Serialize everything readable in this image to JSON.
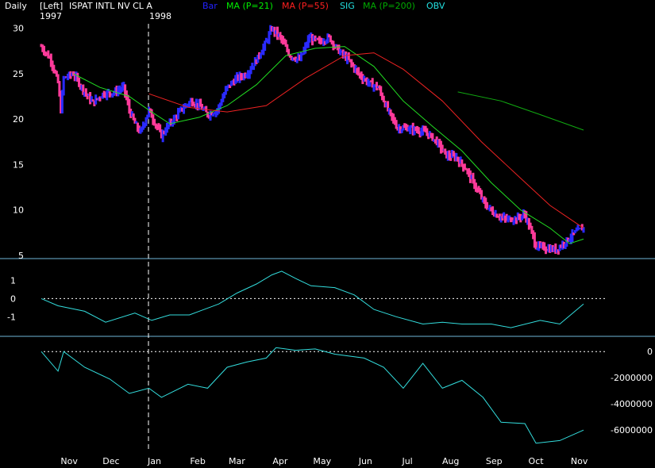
{
  "header": {
    "period": "Daily",
    "axis_side": "[Left]",
    "symbol_title": "ISPAT INTL NV CL A",
    "start_year": "1997",
    "year_marker": "1998",
    "legend": [
      {
        "label": "Bar",
        "color": "#2222ff"
      },
      {
        "label": "MA (P=21)",
        "color": "#00ee00"
      },
      {
        "label": "MA (P=55)",
        "color": "#ff2020"
      },
      {
        "label": "SIG",
        "color": "#22e0e0"
      },
      {
        "label": "MA (P=200)",
        "color": "#00aa00"
      },
      {
        "label": "OBV",
        "color": "#22e0e0"
      }
    ]
  },
  "colors": {
    "up_bar": "#2a2aff",
    "down_bar": "#ff3a9a",
    "ma21": "#22dd22",
    "ma55": "#ee2222",
    "ma200": "#11aa11",
    "sig": "#33dddd",
    "obv": "#33dddd",
    "separator": "#6fb6d8",
    "axis_text": "#ffffff"
  },
  "chart_data": [
    {
      "type": "bar",
      "title": "ISPAT INTL NV CL A",
      "x_axis": {
        "labels": [
          "Nov",
          "Dec",
          "Jan",
          "Feb",
          "Mar",
          "Apr",
          "May",
          "Jun",
          "Jul",
          "Aug",
          "Sep",
          "Oct",
          "Nov"
        ],
        "start": "1997-10-20",
        "end": "1998-11-12"
      },
      "y_axis": {
        "ticks": [
          "30",
          "25",
          "20",
          "15",
          "10",
          "5"
        ],
        "ylim": [
          5,
          30.5
        ]
      },
      "price_points": [
        [
          "1997-10-20",
          28.0
        ],
        [
          "1997-10-27",
          26.5
        ],
        [
          "1997-11-01",
          24.0
        ],
        [
          "1997-11-03",
          21.0
        ],
        [
          "1997-11-05",
          24.5
        ],
        [
          "1997-11-12",
          25.0
        ],
        [
          "1997-11-20",
          23.0
        ],
        [
          "1997-11-26",
          21.8
        ],
        [
          "1997-12-03",
          22.8
        ],
        [
          "1997-12-12",
          23.0
        ],
        [
          "1997-12-18",
          23.5
        ],
        [
          "1997-12-22",
          21.0
        ],
        [
          "1997-12-26",
          19.5
        ],
        [
          "1997-12-30",
          18.5
        ],
        [
          "1998-01-05",
          21.0
        ],
        [
          "1998-01-08",
          20.0
        ],
        [
          "1998-01-14",
          18.2
        ],
        [
          "1998-01-20",
          19.5
        ],
        [
          "1998-01-28",
          21.0
        ],
        [
          "1998-02-04",
          22.0
        ],
        [
          "1998-02-10",
          21.5
        ],
        [
          "1998-02-16",
          20.5
        ],
        [
          "1998-02-23",
          21.0
        ],
        [
          "1998-03-02",
          23.5
        ],
        [
          "1998-03-09",
          24.5
        ],
        [
          "1998-03-16",
          25.0
        ],
        [
          "1998-03-23",
          26.5
        ],
        [
          "1998-03-30",
          28.5
        ],
        [
          "1998-04-03",
          30.0
        ],
        [
          "1998-04-09",
          29.0
        ],
        [
          "1998-04-16",
          27.0
        ],
        [
          "1998-04-23",
          26.5
        ],
        [
          "1998-04-30",
          29.0
        ],
        [
          "1998-05-07",
          28.5
        ],
        [
          "1998-05-14",
          29.0
        ],
        [
          "1998-05-21",
          27.5
        ],
        [
          "1998-05-28",
          26.5
        ],
        [
          "1998-06-04",
          25.0
        ],
        [
          "1998-06-11",
          24.0
        ],
        [
          "1998-06-18",
          23.5
        ],
        [
          "1998-06-25",
          21.0
        ],
        [
          "1998-07-02",
          19.0
        ],
        [
          "1998-07-09",
          19.0
        ],
        [
          "1998-07-16",
          18.8
        ],
        [
          "1998-07-23",
          18.5
        ],
        [
          "1998-07-30",
          17.5
        ],
        [
          "1998-08-06",
          16.0
        ],
        [
          "1998-08-13",
          15.8
        ],
        [
          "1998-08-20",
          14.5
        ],
        [
          "1998-08-27",
          12.5
        ],
        [
          "1998-09-03",
          10.5
        ],
        [
          "1998-09-10",
          9.5
        ],
        [
          "1998-09-17",
          9.0
        ],
        [
          "1998-09-24",
          9.0
        ],
        [
          "1998-10-01",
          9.5
        ],
        [
          "1998-10-06",
          7.5
        ],
        [
          "1998-10-09",
          6.0
        ],
        [
          "1998-10-16",
          5.8
        ],
        [
          "1998-10-23",
          5.6
        ],
        [
          "1998-10-30",
          6.5
        ],
        [
          "1998-11-06",
          7.5
        ],
        [
          "1998-11-12",
          8.0
        ]
      ],
      "series": [
        {
          "name": "MA (P=21)",
          "points": [
            [
              "1997-11-12",
              25.0
            ],
            [
              "1997-12-01",
              23.5
            ],
            [
              "1997-12-22",
              22.5
            ],
            [
              "1998-01-05",
              21.0
            ],
            [
              "1998-01-20",
              19.5
            ],
            [
              "1998-02-10",
              20.2
            ],
            [
              "1998-03-02",
              21.5
            ],
            [
              "1998-03-23",
              23.8
            ],
            [
              "1998-04-13",
              27.0
            ],
            [
              "1998-05-04",
              27.8
            ],
            [
              "1998-05-25",
              28.0
            ],
            [
              "1998-06-15",
              25.8
            ],
            [
              "1998-07-06",
              22.0
            ],
            [
              "1998-07-27",
              19.2
            ],
            [
              "1998-08-17",
              16.5
            ],
            [
              "1998-09-07",
              13.0
            ],
            [
              "1998-09-28",
              10.0
            ],
            [
              "1998-10-19",
              8.0
            ],
            [
              "1998-11-02",
              6.3
            ],
            [
              "1998-11-12",
              6.8
            ]
          ]
        },
        {
          "name": "MA (P=55)",
          "points": [
            [
              "1998-01-05",
              22.8
            ],
            [
              "1998-02-02",
              21.3
            ],
            [
              "1998-03-02",
              20.8
            ],
            [
              "1998-03-30",
              21.5
            ],
            [
              "1998-04-27",
              24.5
            ],
            [
              "1998-05-25",
              27.0
            ],
            [
              "1998-06-15",
              27.3
            ],
            [
              "1998-07-06",
              25.5
            ],
            [
              "1998-08-03",
              22.0
            ],
            [
              "1998-08-31",
              17.5
            ],
            [
              "1998-09-28",
              13.5
            ],
            [
              "1998-10-19",
              10.5
            ],
            [
              "1998-11-12",
              8.0
            ]
          ]
        },
        {
          "name": "MA (P=200)",
          "points": [
            [
              "1998-08-14",
              23.0
            ],
            [
              "1998-09-14",
              22.0
            ],
            [
              "1998-10-12",
              20.5
            ],
            [
              "1998-11-12",
              18.8
            ]
          ]
        }
      ]
    },
    {
      "type": "line",
      "series_name": "SIG",
      "y_axis": {
        "ticks": [
          "1",
          "0",
          "-1"
        ],
        "ylim": [
          -1.9,
          1.8
        ]
      },
      "points": [
        [
          "1997-10-20",
          0.0
        ],
        [
          "1997-11-01",
          -0.4
        ],
        [
          "1997-11-20",
          -0.7
        ],
        [
          "1997-12-05",
          -1.3
        ],
        [
          "1997-12-26",
          -0.8
        ],
        [
          "1998-01-07",
          -1.2
        ],
        [
          "1998-01-20",
          -0.9
        ],
        [
          "1998-02-03",
          -0.9
        ],
        [
          "1998-02-24",
          -0.3
        ],
        [
          "1998-03-09",
          0.3
        ],
        [
          "1998-03-23",
          0.8
        ],
        [
          "1998-04-03",
          1.3
        ],
        [
          "1998-04-10",
          1.5
        ],
        [
          "1998-04-20",
          1.1
        ],
        [
          "1998-05-01",
          0.7
        ],
        [
          "1998-05-18",
          0.6
        ],
        [
          "1998-06-01",
          0.2
        ],
        [
          "1998-06-15",
          -0.6
        ],
        [
          "1998-07-01",
          -1.0
        ],
        [
          "1998-07-20",
          -1.4
        ],
        [
          "1998-08-03",
          -1.3
        ],
        [
          "1998-08-17",
          -1.4
        ],
        [
          "1998-09-07",
          -1.4
        ],
        [
          "1998-09-21",
          -1.6
        ],
        [
          "1998-10-12",
          -1.2
        ],
        [
          "1998-10-26",
          -1.4
        ],
        [
          "1998-11-12",
          -0.3
        ]
      ]
    },
    {
      "type": "line",
      "series_name": "OBV",
      "y_axis": {
        "ticks": [
          "0",
          "-2000000",
          "-4000000",
          "-6000000"
        ],
        "ylim": [
          -7200000,
          800000
        ]
      },
      "points": [
        [
          "1997-10-20",
          0
        ],
        [
          "1997-11-01",
          -1500000
        ],
        [
          "1997-11-05",
          0
        ],
        [
          "1997-11-20",
          -1200000
        ],
        [
          "1997-12-08",
          -2100000
        ],
        [
          "1997-12-22",
          -3200000
        ],
        [
          "1998-01-05",
          -2800000
        ],
        [
          "1998-01-14",
          -3500000
        ],
        [
          "1998-02-02",
          -2500000
        ],
        [
          "1998-02-16",
          -2800000
        ],
        [
          "1998-03-02",
          -1200000
        ],
        [
          "1998-03-16",
          -800000
        ],
        [
          "1998-03-30",
          -500000
        ],
        [
          "1998-04-06",
          300000
        ],
        [
          "1998-04-20",
          100000
        ],
        [
          "1998-05-04",
          200000
        ],
        [
          "1998-05-18",
          -200000
        ],
        [
          "1998-06-08",
          -500000
        ],
        [
          "1998-06-22",
          -1200000
        ],
        [
          "1998-07-06",
          -2800000
        ],
        [
          "1998-07-20",
          -900000
        ],
        [
          "1998-08-03",
          -2800000
        ],
        [
          "1998-08-17",
          -2200000
        ],
        [
          "1998-09-01",
          -3500000
        ],
        [
          "1998-09-14",
          -5400000
        ],
        [
          "1998-10-01",
          -5500000
        ],
        [
          "1998-10-09",
          -7000000
        ],
        [
          "1998-10-26",
          -6800000
        ],
        [
          "1998-11-12",
          -6000000
        ]
      ]
    }
  ]
}
